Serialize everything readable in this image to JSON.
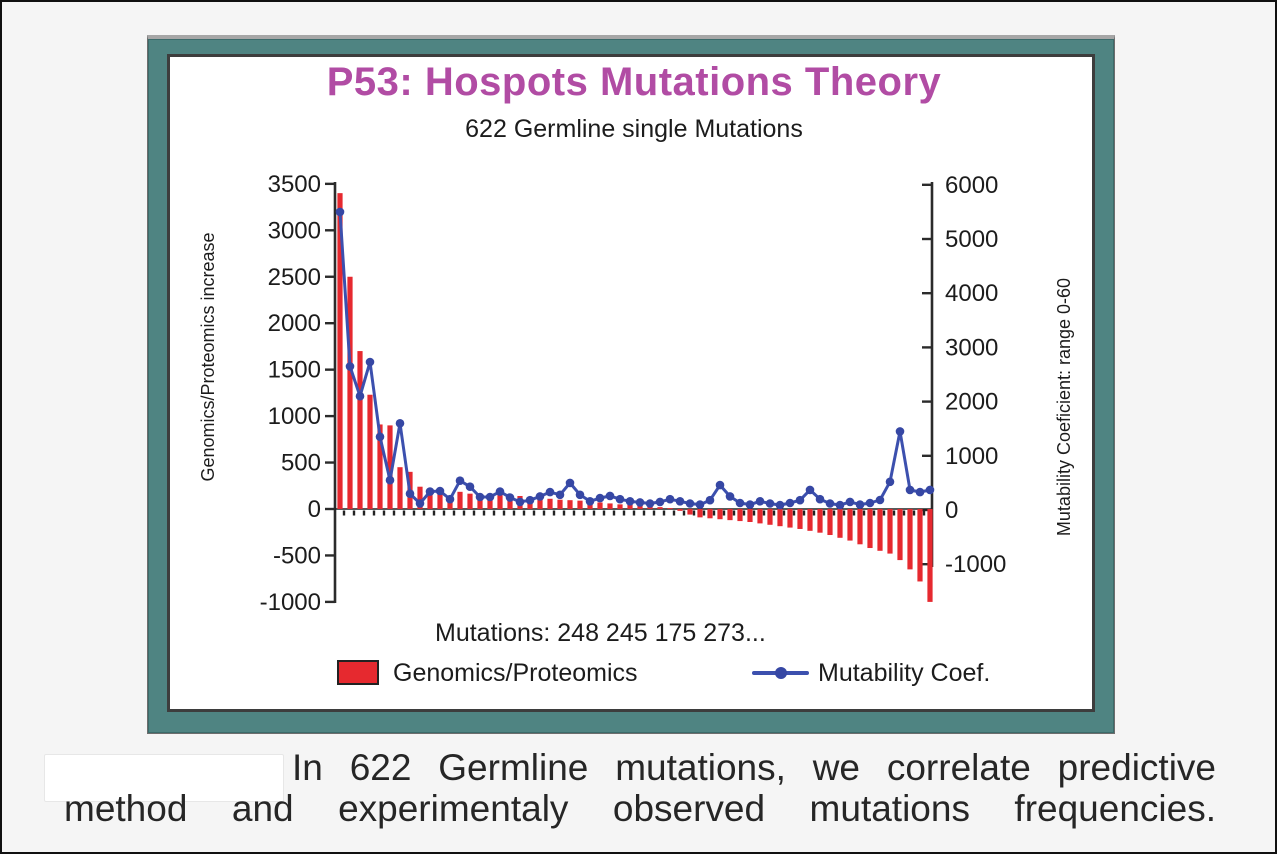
{
  "slide": {
    "title": "P53: Hospots Mutations Theory",
    "subtitle": "622 Germline single Mutations",
    "title_color": "#b14ca4",
    "frame_color": "#4f8482"
  },
  "caption": {
    "line1": "In 622 Germline mutations, we correlate predictive",
    "line2": "method and experimentaly observed mutations frequencies."
  },
  "chart_data": {
    "type": "bar+line combo",
    "title": "P53: Hospots Mutations Theory",
    "subtitle": "622 Germline single Mutations",
    "x_label": "Mutations: 248 245 175 273...",
    "grid": false,
    "legend_position": "bottom",
    "left_axis": {
      "label": "Genomics/Proteomics increase",
      "range": [
        -1000,
        3500
      ],
      "ticks": [
        3500,
        3000,
        2500,
        2000,
        1500,
        1000,
        500,
        0,
        -500,
        -1000
      ]
    },
    "right_axis": {
      "label": "Mutability Coeficient: range 0-60",
      "range": [
        -1000,
        6000
      ],
      "ticks": [
        6000,
        5000,
        4000,
        3000,
        2000,
        1000,
        0,
        -1000
      ]
    },
    "series": [
      {
        "name": "Genomics/Proteomics",
        "type": "bar",
        "axis": "left",
        "color": "#e6292f",
        "values": [
          3400,
          2500,
          1700,
          1230,
          910,
          900,
          450,
          400,
          240,
          150,
          200,
          130,
          185,
          165,
          150,
          150,
          165,
          150,
          140,
          130,
          120,
          110,
          100,
          95,
          90,
          80,
          70,
          60,
          50,
          45,
          40,
          30,
          20,
          10,
          -20,
          -60,
          -90,
          -100,
          -110,
          -120,
          -130,
          -140,
          -155,
          -170,
          -185,
          -200,
          -215,
          -235,
          -255,
          -280,
          -310,
          -340,
          -380,
          -420,
          -450,
          -480,
          -550,
          -650,
          -780,
          -1000
        ]
      },
      {
        "name": "Mutability Coef.",
        "type": "line",
        "axis": "right",
        "color": "#3c50ae",
        "marker_color": "#3647a4",
        "values": [
          5500,
          2650,
          2100,
          2730,
          1350,
          550,
          1600,
          300,
          120,
          340,
          350,
          200,
          540,
          430,
          240,
          240,
          340,
          230,
          150,
          180,
          250,
          330,
          280,
          500,
          280,
          160,
          220,
          260,
          200,
          160,
          140,
          120,
          150,
          200,
          160,
          120,
          100,
          180,
          460,
          250,
          130,
          100,
          160,
          120,
          90,
          130,
          180,
          370,
          200,
          120,
          90,
          150,
          100,
          130,
          185,
          520,
          1450,
          370,
          330,
          370
        ]
      }
    ]
  }
}
